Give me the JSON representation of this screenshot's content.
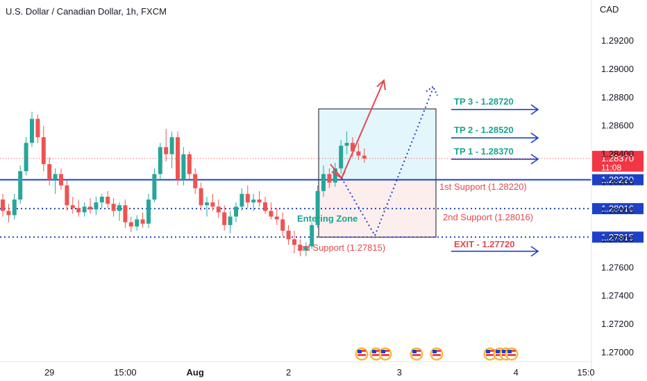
{
  "chart_title": "U.S. Dollar / Canadian Dollar, 1h, FXCM",
  "colors": {
    "up": "#26a69a",
    "down": "#ef5350",
    "blue": "#1e40c8",
    "teal": "#1aa38f",
    "red": "#e5484d",
    "price_label": "#f23645",
    "zone_top": "#e3f6fb",
    "zone_bottom": "#fdeeee"
  },
  "chart_data": {
    "type": "candlestick",
    "symbol": "U.S. Dollar / Canadian Dollar",
    "timeframe": "1h",
    "source": "FXCM",
    "ylabel": "CAD",
    "ylim": [
      1.269,
      1.295
    ],
    "y_ticks": [
      "1.29200",
      "1.29000",
      "1.28800",
      "1.28600",
      "1.28400",
      "1.28200",
      "1.28000",
      "1.27800",
      "1.27600",
      "1.27400",
      "1.27200",
      "1.27000"
    ],
    "x_ticks": [
      "29",
      "15:00",
      "Aug",
      "2",
      "3",
      "4",
      "15:0"
    ],
    "x_tick_index": [
      8,
      21,
      33,
      49,
      68,
      88,
      100
    ],
    "ohlc": [
      [
        1.2808,
        1.2812,
        1.2796,
        1.28
      ],
      [
        1.28,
        1.2805,
        1.2792,
        1.2797
      ],
      [
        1.2797,
        1.2812,
        1.2794,
        1.2808
      ],
      [
        1.2808,
        1.2832,
        1.2805,
        1.2828
      ],
      [
        1.2828,
        1.2852,
        1.2825,
        1.2848
      ],
      [
        1.2848,
        1.287,
        1.2845,
        1.2865
      ],
      [
        1.2865,
        1.2868,
        1.2848,
        1.2852
      ],
      [
        1.2852,
        1.286,
        1.2828,
        1.2833
      ],
      [
        1.2833,
        1.2838,
        1.2818,
        1.2822
      ],
      [
        1.2822,
        1.283,
        1.2812,
        1.2826
      ],
      [
        1.2826,
        1.283,
        1.2815,
        1.2818
      ],
      [
        1.2818,
        1.2822,
        1.28,
        1.2804
      ],
      [
        1.2804,
        1.281,
        1.2798,
        1.2802
      ],
      [
        1.2802,
        1.2808,
        1.2796,
        1.2799
      ],
      [
        1.2799,
        1.2806,
        1.2796,
        1.2803
      ],
      [
        1.2803,
        1.2809,
        1.2798,
        1.2801
      ],
      [
        1.2801,
        1.281,
        1.2797,
        1.2806
      ],
      [
        1.2806,
        1.2812,
        1.2802,
        1.281
      ],
      [
        1.281,
        1.2814,
        1.2802,
        1.2805
      ],
      [
        1.2805,
        1.2809,
        1.2796,
        1.28
      ],
      [
        1.28,
        1.2806,
        1.2793,
        1.2804
      ],
      [
        1.2804,
        1.2808,
        1.2788,
        1.2792
      ],
      [
        1.2792,
        1.2796,
        1.2785,
        1.2789
      ],
      [
        1.2789,
        1.2797,
        1.2786,
        1.2794
      ],
      [
        1.2794,
        1.2799,
        1.2788,
        1.2791
      ],
      [
        1.2791,
        1.2812,
        1.2788,
        1.2808
      ],
      [
        1.2808,
        1.283,
        1.2806,
        1.2826
      ],
      [
        1.2826,
        1.2848,
        1.2822,
        1.2845
      ],
      [
        1.2845,
        1.2858,
        1.2835,
        1.284
      ],
      [
        1.284,
        1.2856,
        1.283,
        1.2852
      ],
      [
        1.2852,
        1.2856,
        1.2818,
        1.2822
      ],
      [
        1.2822,
        1.2845,
        1.2818,
        1.284
      ],
      [
        1.284,
        1.2842,
        1.2822,
        1.2826
      ],
      [
        1.2826,
        1.283,
        1.2812,
        1.2816
      ],
      [
        1.2816,
        1.282,
        1.28,
        1.2804
      ],
      [
        1.2804,
        1.281,
        1.2796,
        1.2806
      ],
      [
        1.2806,
        1.2812,
        1.28,
        1.2803
      ],
      [
        1.2803,
        1.2808,
        1.2795,
        1.2799
      ],
      [
        1.2799,
        1.2804,
        1.2786,
        1.279
      ],
      [
        1.279,
        1.28,
        1.2784,
        1.2796
      ],
      [
        1.2796,
        1.2806,
        1.2792,
        1.2803
      ],
      [
        1.2803,
        1.2816,
        1.28,
        1.2812
      ],
      [
        1.2812,
        1.2818,
        1.2802,
        1.2806
      ],
      [
        1.2806,
        1.2812,
        1.28,
        1.2808
      ],
      [
        1.2808,
        1.2814,
        1.2803,
        1.2806
      ],
      [
        1.2806,
        1.281,
        1.2798,
        1.28
      ],
      [
        1.28,
        1.2806,
        1.2794,
        1.2796
      ],
      [
        1.2796,
        1.2802,
        1.279,
        1.2794
      ],
      [
        1.2794,
        1.2799,
        1.2782,
        1.2786
      ],
      [
        1.2786,
        1.279,
        1.2776,
        1.278
      ],
      [
        1.278,
        1.2786,
        1.277,
        1.2776
      ],
      [
        1.2776,
        1.278,
        1.2768,
        1.2772
      ],
      [
        1.2772,
        1.2778,
        1.2768,
        1.2775
      ],
      [
        1.2775,
        1.2792,
        1.2773,
        1.279
      ],
      [
        1.279,
        1.2818,
        1.2788,
        1.2814
      ],
      [
        1.2814,
        1.2832,
        1.281,
        1.2826
      ],
      [
        1.2826,
        1.283,
        1.2816,
        1.282
      ],
      [
        1.282,
        1.2834,
        1.2817,
        1.283
      ],
      [
        1.283,
        1.285,
        1.2826,
        1.2846
      ],
      [
        1.2846,
        1.2856,
        1.284,
        1.2848
      ],
      [
        1.2848,
        1.2852,
        1.2838,
        1.2842
      ],
      [
        1.2842,
        1.2848,
        1.2836,
        1.2839
      ],
      [
        1.2839,
        1.2844,
        1.2834,
        1.2837
      ]
    ],
    "current_price": "1.28370",
    "countdown": "11:08",
    "levels": [
      {
        "label": "1.28220",
        "value": 1.2822,
        "style": "solid"
      },
      {
        "label": "1.28016",
        "value": 1.28016,
        "style": "dotted"
      },
      {
        "label": "1.27815",
        "value": 1.27815,
        "style": "dotted"
      }
    ]
  },
  "annotations": {
    "tp3": "TP 3 - 1.28720",
    "tp2": "TP 2 - 1.28520",
    "tp1": "TP 1 - 1.28370",
    "support1": "1st Support (1.28220)",
    "support2": "2nd Support (1.28016)",
    "support3": "3rd Support (1.27815)",
    "entering_zone": "Entering Zone",
    "exit": "EXIT - 1.27720"
  },
  "event_icons": [
    "us-flag-icon",
    "us-flag-icon",
    "us-flag-icon",
    "us-flag-icon",
    "us-flag-icon",
    "us-flag-icon",
    "us-flag-icon",
    "us-flag-icon",
    "us-flag-icon"
  ]
}
